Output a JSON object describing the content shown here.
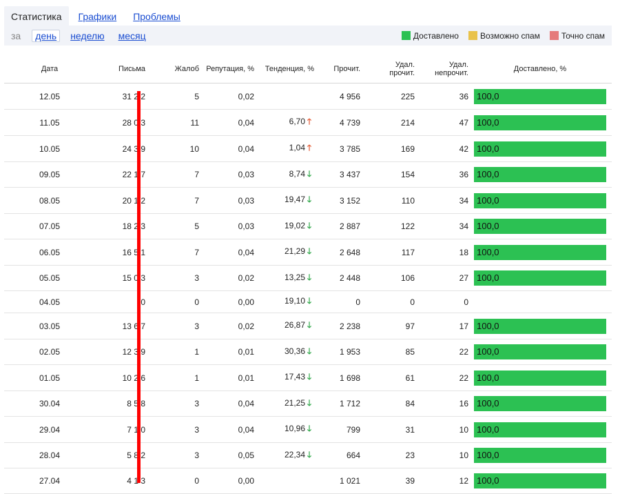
{
  "tabs": [
    {
      "label": "Статистика",
      "active": true
    },
    {
      "label": "Графики",
      "active": false
    },
    {
      "label": "Проблемы",
      "active": false
    }
  ],
  "toolbar": {
    "prefix": "за",
    "periods": [
      {
        "label": "день",
        "active": true
      },
      {
        "label": "неделю",
        "active": false
      },
      {
        "label": "месяц",
        "active": false
      }
    ]
  },
  "legend": [
    {
      "label": "Доставлено",
      "color": "#2cc153"
    },
    {
      "label": "Возможно спам",
      "color": "#e9c24a"
    },
    {
      "label": "Точно спам",
      "color": "#e57b7b"
    }
  ],
  "columns": [
    "Дата",
    "Письма",
    "Жалоб",
    "Репутация, %",
    "Тенденция, %",
    "Прочит.",
    "Удал. прочит.",
    "Удал. непрочит.",
    "Доставлено, %"
  ],
  "rows": [
    {
      "date": "12.05",
      "letters": "31 2 2",
      "complaints": "5",
      "reputation": "0,02",
      "trend": "",
      "trend_dir": "",
      "read": "4 956",
      "del_read": "225",
      "del_unread": "36",
      "delivered": "100,0"
    },
    {
      "date": "11.05",
      "letters": "28 0 3",
      "complaints": "11",
      "reputation": "0,04",
      "trend": "6,70",
      "trend_dir": "up",
      "read": "4 739",
      "del_read": "214",
      "del_unread": "47",
      "delivered": "100,0"
    },
    {
      "date": "10.05",
      "letters": "24 3 9",
      "complaints": "10",
      "reputation": "0,04",
      "trend": "1,04",
      "trend_dir": "up",
      "read": "3 785",
      "del_read": "169",
      "del_unread": "42",
      "delivered": "100,0"
    },
    {
      "date": "09.05",
      "letters": "22 1 7",
      "complaints": "7",
      "reputation": "0,03",
      "trend": "8,74",
      "trend_dir": "down",
      "read": "3 437",
      "del_read": "154",
      "del_unread": "36",
      "delivered": "100,0"
    },
    {
      "date": "08.05",
      "letters": "20 1 2",
      "complaints": "7",
      "reputation": "0,03",
      "trend": "19,47",
      "trend_dir": "down",
      "read": "3 152",
      "del_read": "110",
      "del_unread": "34",
      "delivered": "100,0"
    },
    {
      "date": "07.05",
      "letters": "18 2 3",
      "complaints": "5",
      "reputation": "0,03",
      "trend": "19,02",
      "trend_dir": "down",
      "read": "2 887",
      "del_read": "122",
      "del_unread": "34",
      "delivered": "100,0"
    },
    {
      "date": "06.05",
      "letters": "16 5 1",
      "complaints": "7",
      "reputation": "0,04",
      "trend": "21,29",
      "trend_dir": "down",
      "read": "2 648",
      "del_read": "117",
      "del_unread": "18",
      "delivered": "100,0"
    },
    {
      "date": "05.05",
      "letters": "15 0 3",
      "complaints": "3",
      "reputation": "0,02",
      "trend": "13,25",
      "trend_dir": "down",
      "read": "2 448",
      "del_read": "106",
      "del_unread": "27",
      "delivered": "100,0"
    },
    {
      "date": "04.05",
      "letters": "0",
      "complaints": "0",
      "reputation": "0,00",
      "trend": "19,10",
      "trend_dir": "down",
      "read": "0",
      "del_read": "0",
      "del_unread": "0",
      "delivered": ""
    },
    {
      "date": "03.05",
      "letters": "13 6 7",
      "complaints": "3",
      "reputation": "0,02",
      "trend": "26,87",
      "trend_dir": "down",
      "read": "2 238",
      "del_read": "97",
      "del_unread": "17",
      "delivered": "100,0"
    },
    {
      "date": "02.05",
      "letters": "12 3 9",
      "complaints": "1",
      "reputation": "0,01",
      "trend": "30,36",
      "trend_dir": "down",
      "read": "1 953",
      "del_read": "85",
      "del_unread": "22",
      "delivered": "100,0"
    },
    {
      "date": "01.05",
      "letters": "10 2 6",
      "complaints": "1",
      "reputation": "0,01",
      "trend": "17,43",
      "trend_dir": "down",
      "read": "1 698",
      "del_read": "61",
      "del_unread": "22",
      "delivered": "100,0"
    },
    {
      "date": "30.04",
      "letters": "8 5 8",
      "complaints": "3",
      "reputation": "0,04",
      "trend": "21,25",
      "trend_dir": "down",
      "read": "1 712",
      "del_read": "84",
      "del_unread": "16",
      "delivered": "100,0"
    },
    {
      "date": "29.04",
      "letters": "7 1 0",
      "complaints": "3",
      "reputation": "0,04",
      "trend": "10,96",
      "trend_dir": "down",
      "read": "799",
      "del_read": "31",
      "del_unread": "10",
      "delivered": "100,0"
    },
    {
      "date": "28.04",
      "letters": "5 8 2",
      "complaints": "3",
      "reputation": "0,05",
      "trend": "22,34",
      "trend_dir": "down",
      "read": "664",
      "del_read": "23",
      "del_unread": "10",
      "delivered": "100,0"
    },
    {
      "date": "27.04",
      "letters": "4 1 3",
      "complaints": "0",
      "reputation": "0,00",
      "trend": "",
      "trend_dir": "",
      "read": "1 021",
      "del_read": "39",
      "del_unread": "12",
      "delivered": "100,0"
    }
  ],
  "icons": {
    "trend_up": "arrow-up-icon",
    "trend_down": "arrow-down-icon"
  },
  "arrow_glyphs": {
    "up": "🡑",
    "down": "🡓"
  }
}
